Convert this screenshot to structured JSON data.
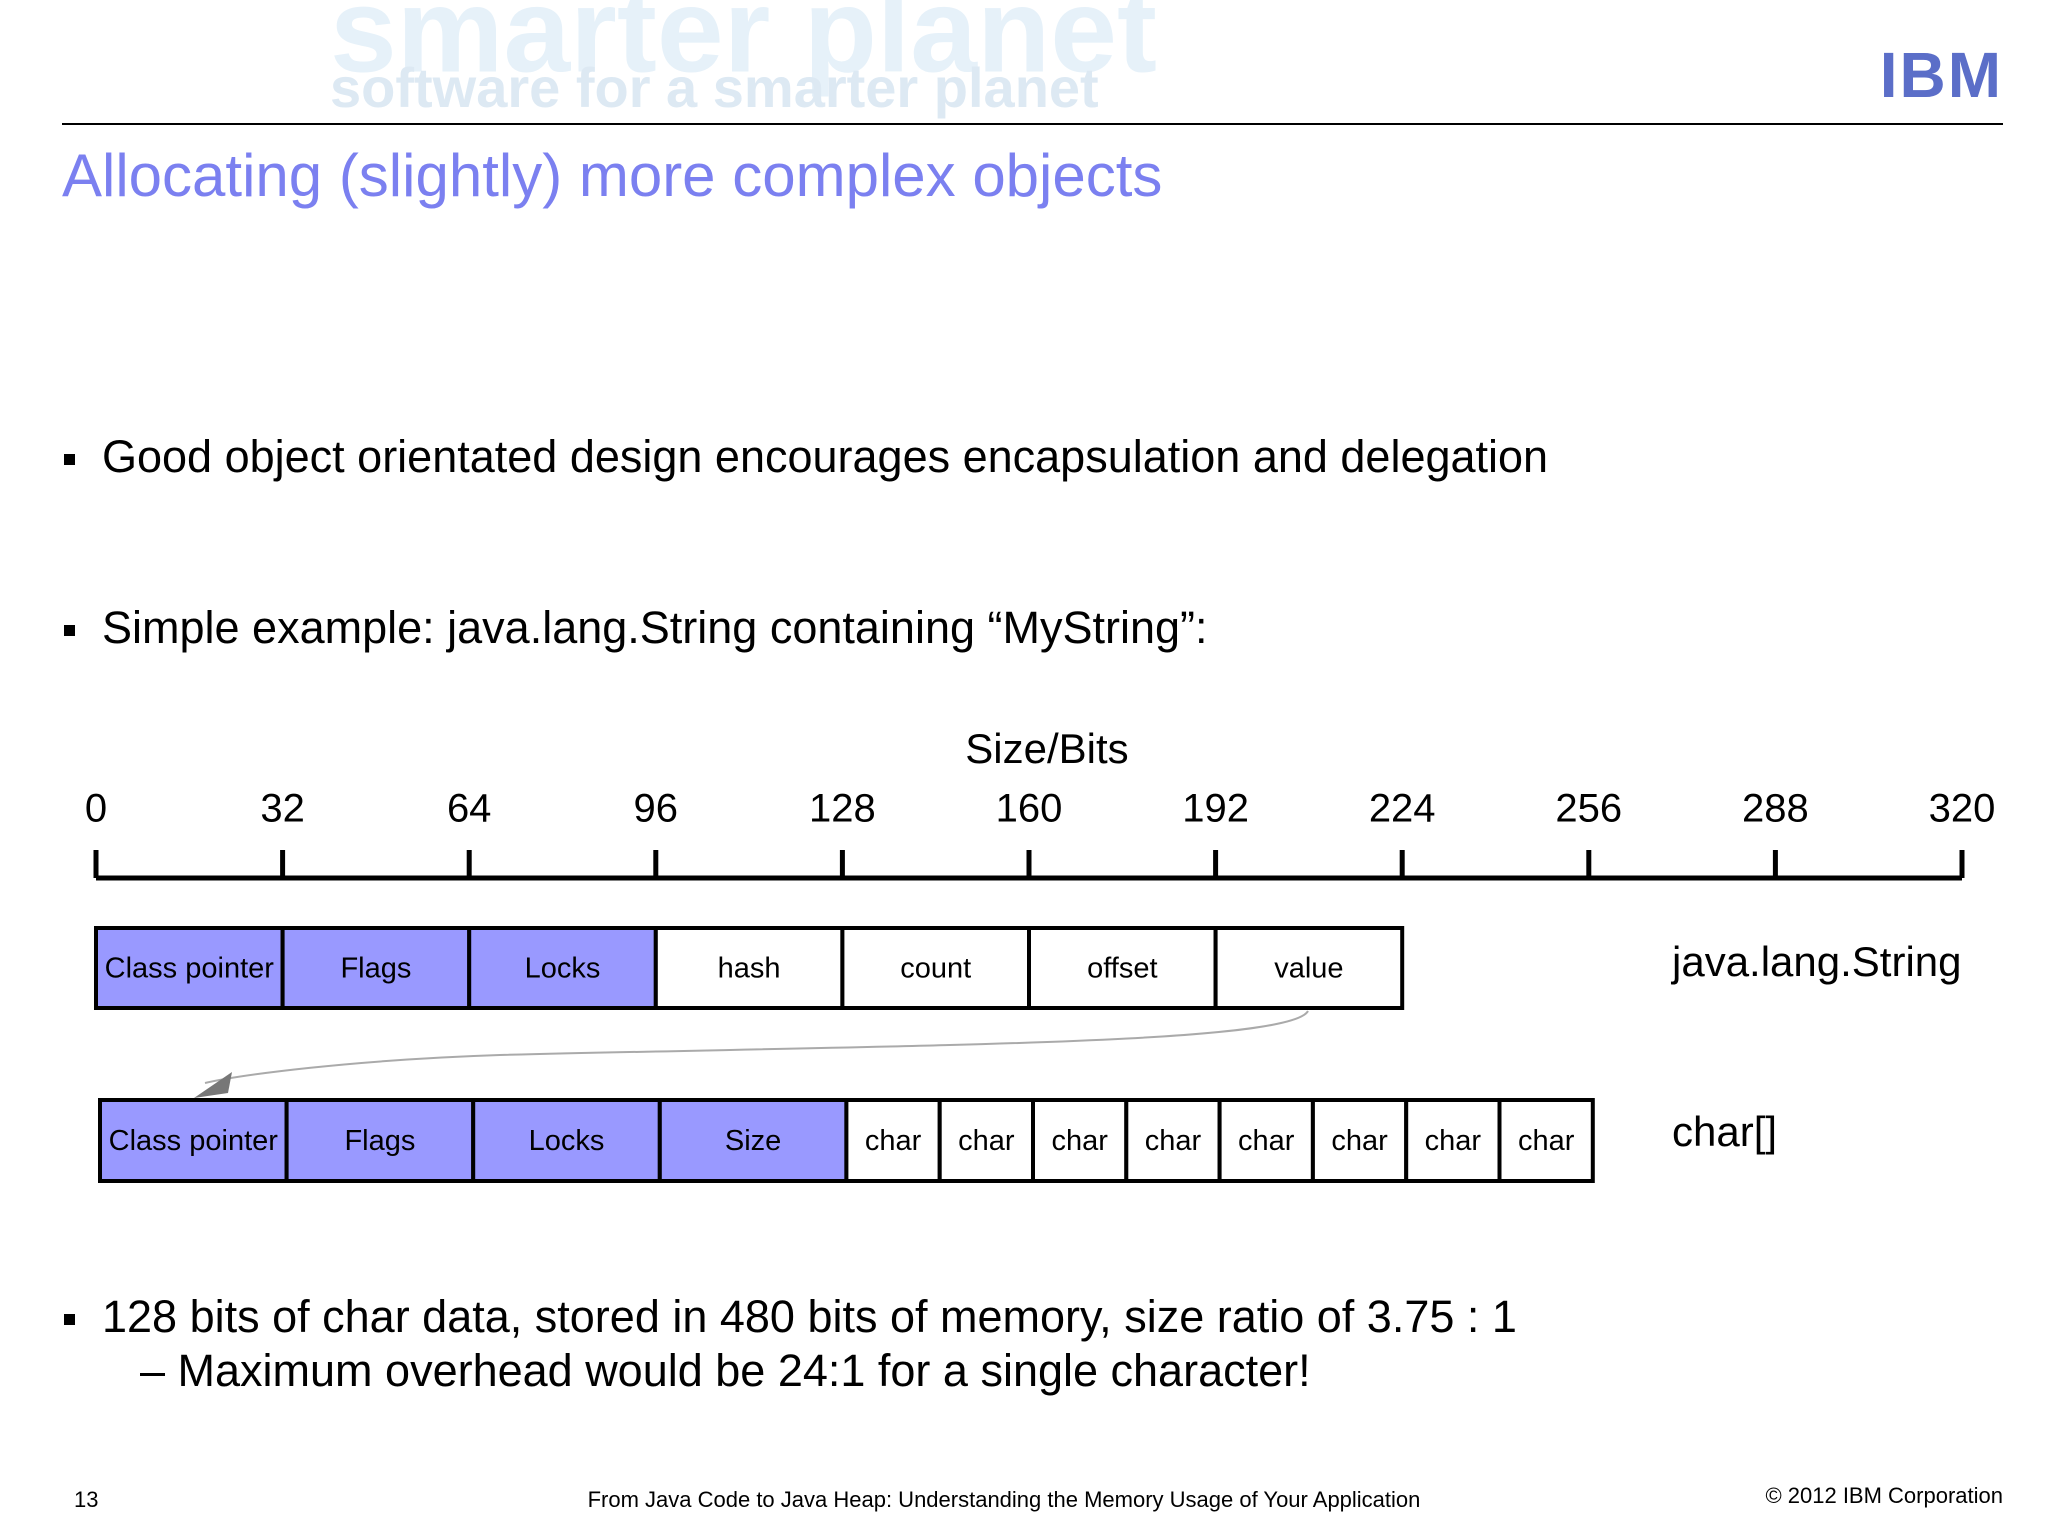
{
  "header": {
    "watermark": [
      "smarter planet",
      "software for a smarter planet"
    ],
    "logo": "IBM"
  },
  "title": "Allocating (slightly) more complex objects",
  "bullets": [
    {
      "text": "Good object orientated design encourages encapsulation and delegation"
    },
    {
      "text": "Simple example: java.lang.String containing “MyString”:"
    },
    {
      "text": "128 bits of char data, stored in 480 bits of memory, size ratio of 3.75 : 1",
      "sub": "– Maximum overhead would be 24:1 for a single character!"
    }
  ],
  "diagram": {
    "axis_label": "Size/Bits",
    "ticks": [
      0,
      32,
      64,
      96,
      128,
      160,
      192,
      224,
      256,
      288,
      320
    ],
    "rows": [
      {
        "label": "java.lang.String",
        "fields": [
          {
            "text": "Class pointer",
            "color": "#9999ff"
          },
          {
            "text": "Flags",
            "color": "#9999ff"
          },
          {
            "text": "Locks",
            "color": "#9999ff"
          },
          {
            "text": "hash",
            "color": "#ffffff"
          },
          {
            "text": "count",
            "color": "#ffffff"
          },
          {
            "text": "offset",
            "color": "#ffffff"
          },
          {
            "text": "value",
            "color": "#ffffff"
          }
        ]
      },
      {
        "label": "char[]",
        "fields": [
          {
            "text": "Class pointer",
            "color": "#9999ff"
          },
          {
            "text": "Flags",
            "color": "#9999ff"
          },
          {
            "text": "Locks",
            "color": "#9999ff"
          },
          {
            "text": "Size",
            "color": "#9999ff"
          },
          {
            "text": "char",
            "color": "#ffffff"
          },
          {
            "text": "char",
            "color": "#ffffff"
          },
          {
            "text": "char",
            "color": "#ffffff"
          },
          {
            "text": "char",
            "color": "#ffffff"
          },
          {
            "text": "char",
            "color": "#ffffff"
          },
          {
            "text": "char",
            "color": "#ffffff"
          },
          {
            "text": "char",
            "color": "#ffffff"
          },
          {
            "text": "char",
            "color": "#ffffff"
          }
        ]
      }
    ]
  },
  "footer": {
    "page": "13",
    "source": "From Java Code to Java Heap: Understanding the Memory Usage of Your Application",
    "copyright": "© 2012 IBM Corporation"
  }
}
